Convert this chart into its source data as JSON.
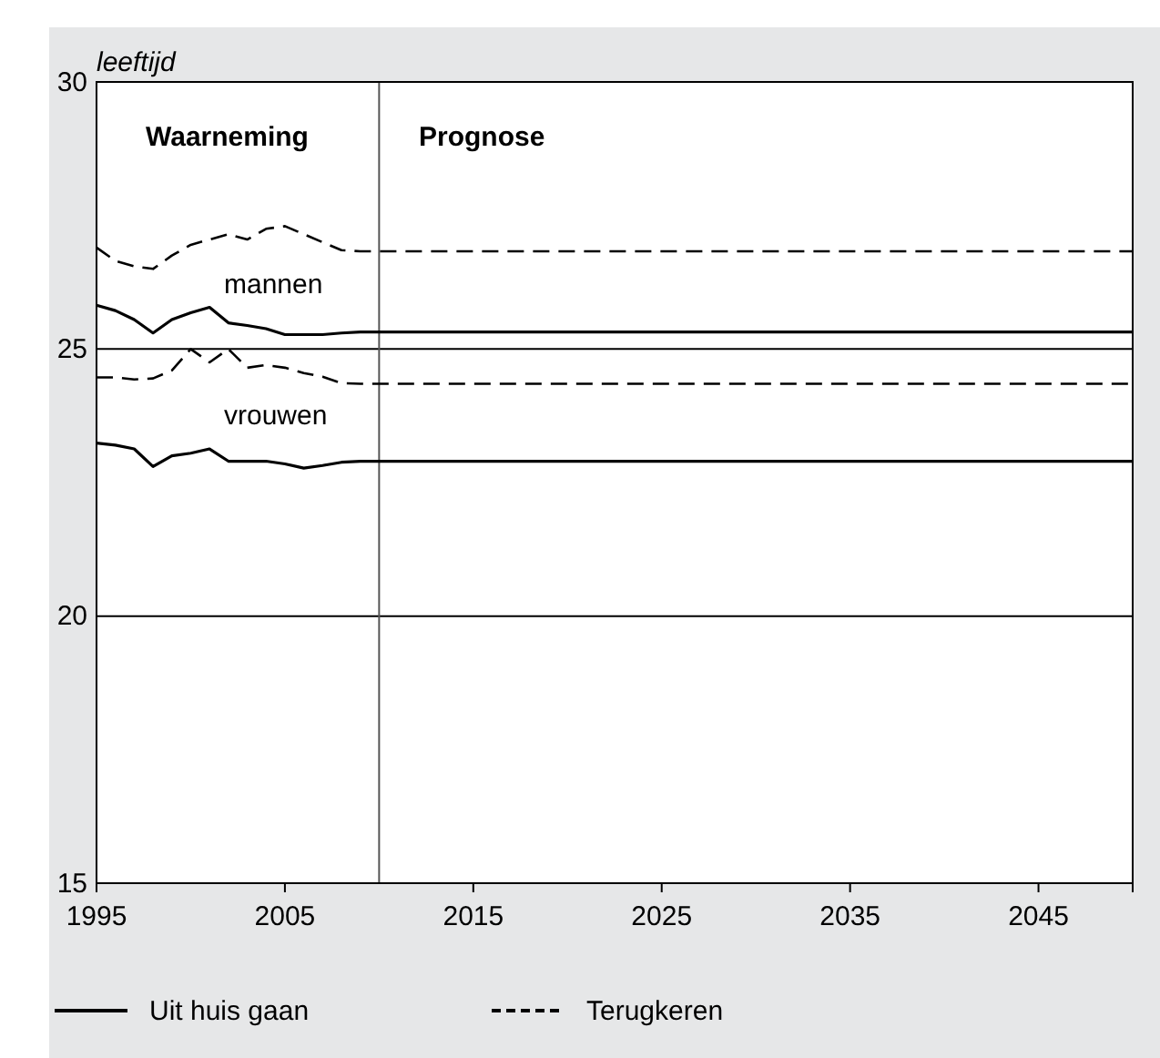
{
  "chart_data": {
    "type": "line",
    "ylabel": "leeftijd",
    "xlim": [
      1995,
      2050
    ],
    "xticks": [
      1995,
      2005,
      2015,
      2025,
      2035,
      2045
    ],
    "ylim": [
      15,
      30
    ],
    "yticks": [
      15,
      20,
      25,
      30
    ],
    "grid": "y",
    "legend": "bottom",
    "ref_lines": [
      {
        "axis": "x",
        "value": 2010,
        "color": "#555555"
      }
    ],
    "annotations": [
      "Waarneming",
      "Prognose",
      "mannen",
      "vrouwen"
    ],
    "series": [
      {
        "name": "Uit huis gaan",
        "color": "#000000",
        "line_style": "solid",
        "x": [
          1995,
          1996,
          1997,
          1998,
          1999,
          2000,
          2001,
          2002,
          2003,
          2004,
          2005,
          2006,
          2007,
          2008,
          2009,
          2050
        ],
        "values": [
          25.82,
          25.72,
          25.55,
          25.3,
          25.55,
          25.68,
          25.78,
          25.49,
          25.44,
          25.38,
          25.27,
          25.27,
          25.27,
          25.3,
          25.32,
          25.32
        ]
      },
      {
        "name": "Terugkeren",
        "color": "#000000",
        "line_style": "dashed",
        "x": [
          1995,
          1996,
          1997,
          1998,
          1999,
          2000,
          2001,
          2002,
          2003,
          2004,
          2005,
          2006,
          2007,
          2008,
          2009,
          2050
        ],
        "values": [
          26.9,
          26.65,
          26.55,
          26.5,
          26.75,
          26.95,
          27.05,
          27.15,
          27.05,
          27.25,
          27.3,
          27.15,
          27.0,
          26.85,
          26.83,
          26.83
        ]
      },
      {
        "color": "#000000",
        "line_style": "solid",
        "x": [
          1995,
          1996,
          1997,
          1998,
          1999,
          2000,
          2001,
          2002,
          2003,
          2004,
          2005,
          2006,
          2007,
          2008,
          2009,
          2050
        ],
        "values": [
          23.24,
          23.2,
          23.13,
          22.8,
          23.0,
          23.05,
          23.13,
          22.9,
          22.9,
          22.9,
          22.85,
          22.77,
          22.82,
          22.88,
          22.9,
          22.9
        ]
      },
      {
        "color": "#000000",
        "line_style": "dashed",
        "x": [
          1995,
          1996,
          1997,
          1998,
          1999,
          2000,
          2001,
          2002,
          2003,
          2004,
          2005,
          2006,
          2007,
          2008,
          2009,
          2050
        ],
        "values": [
          24.47,
          24.47,
          24.43,
          24.45,
          24.6,
          25.0,
          24.75,
          25.0,
          24.65,
          24.7,
          24.65,
          24.55,
          24.48,
          24.36,
          24.35,
          24.35
        ]
      }
    ]
  }
}
